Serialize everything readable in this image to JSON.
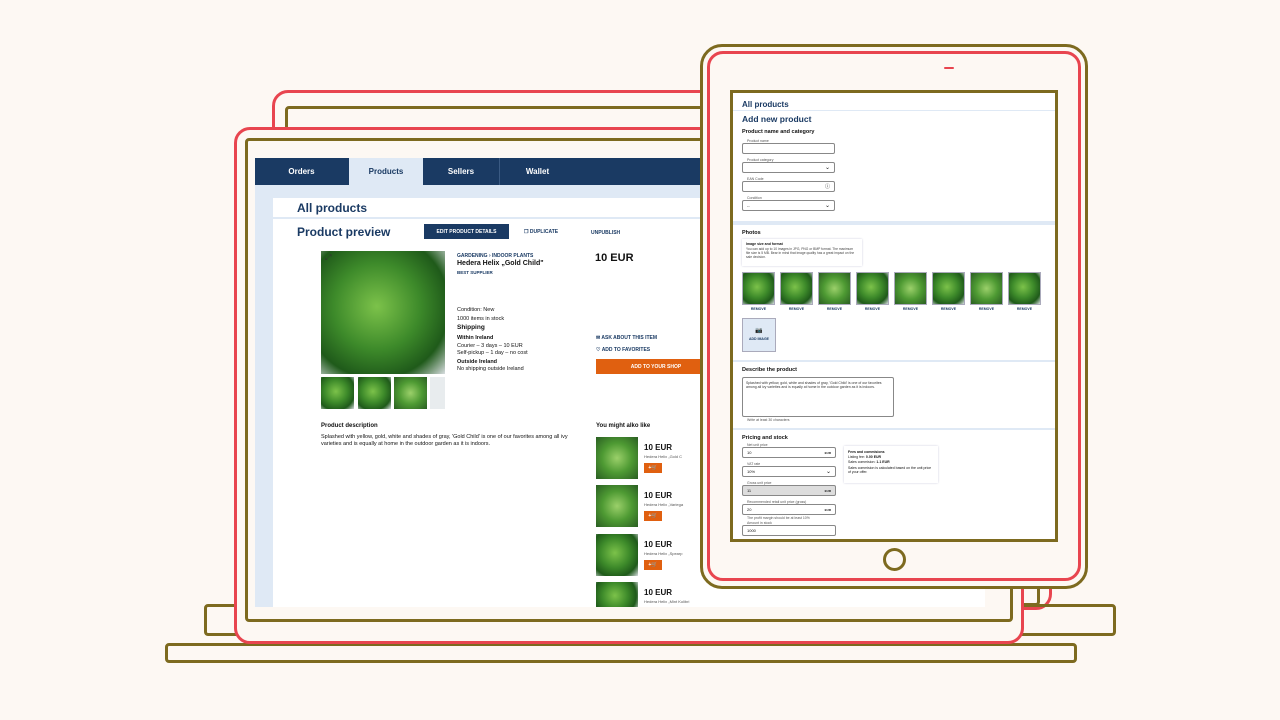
{
  "colors": {
    "background": "#fdf8f3",
    "outline_red": "#e8454f",
    "outline_gold": "#7d6a1f",
    "navy": "#1a3a63",
    "accent_orange": "#e06010",
    "light_blue": "#dfe9f5"
  },
  "laptop": {
    "tabs": [
      {
        "label": "Orders",
        "active": false
      },
      {
        "label": "Products",
        "active": true
      },
      {
        "label": "Sellers",
        "active": false
      },
      {
        "label": "Wallet",
        "active": false
      }
    ],
    "section_title": "All products",
    "page_title": "Product preview",
    "actions": {
      "edit": "EDIT PRODUCT DETAILS",
      "duplicate": "DUPLICATE",
      "unpublish": "UNPUBLISH"
    },
    "product": {
      "category": "GARDENING › INDOOR PLANTS",
      "name": "Hedera Helix „Gold Child\"",
      "badge": "BEST SUPPLIER",
      "price": "10 EUR",
      "condition": "Condition: New",
      "stock": "1000 items in stock",
      "shipping_title": "Shipping",
      "within_title": "Within Ireland",
      "within_1": "Courier – 3 days – 10 EUR",
      "within_2": "Self-pickup – 1 day – no cost",
      "outside_title": "Outside Ireland",
      "outside_1": "No shipping outside Ireland",
      "ask": "ASK ABOUT THIS ITEM",
      "favorites": "ADD TO FAVORITES",
      "add_to_shop": "ADD TO YOUR SHOP",
      "description_title": "Product description",
      "description": "Splashed with yellow, gold, white and shades of gray, 'Gold Child' is one of our favorites among all ivy varieties and is equally at home in the outdoor garden as it is indoors."
    },
    "related_title": "You might alko like",
    "related": [
      {
        "price": "10 EUR",
        "name": "Hedera Helix „Gold C"
      },
      {
        "price": "10 EUR",
        "name": "Hedera Helix „Variega"
      },
      {
        "price": "10 EUR",
        "name": "Hedera Helix „Spearp"
      },
      {
        "price": "10 EUR",
        "name": "Hedera Helix „Mint Kolibri"
      }
    ]
  },
  "tablet": {
    "section_title": "All products",
    "page_title": "Add new product",
    "name_section": "Product name and category",
    "fields": {
      "product_name": "Product name",
      "product_category": "Product category",
      "ean": "EAN Code",
      "condition": "Condition",
      "condition_value": "--"
    },
    "photos_title": "Photos",
    "photos_info_title": "Image size and format",
    "photos_info": "You can add up to 10 images in JPG, PNG or BMP format. The maximum file size is 5 MB. Bear in mind that image quality has a great impact on the sale decision.",
    "remove": "REMOVE",
    "add_image": "ADD IMAGE",
    "describe_title": "Describe the product",
    "describe_text": "Splashed with yellow, gold, white and shades of gray, 'Gold Child' is one of our favorites among all ivy varieties and is equally at home in the outdoor garden as it is indoors.",
    "describe_hint": "Write at least 30 characters",
    "pricing_title": "Pricing and stock",
    "pricing": {
      "net_label": "Net unit price",
      "net_value": "10",
      "currency": "EUR",
      "vat_label": "VAT rate",
      "vat_value": "10%",
      "gross_label": "Gross unit price",
      "gross_value": "11",
      "rrp_label": "Recommended retail unit price (gross)",
      "rrp_value": "20",
      "rrp_hint": "The profit margin should be at least 10%",
      "amount_label": "Amount in stock",
      "amount_value": "1000"
    },
    "fees": {
      "title": "Fees and commisions",
      "listing": "Listing fee: ",
      "listing_value": "0.00 EUR",
      "sales": "Sales commision: ",
      "sales_value": "1.1 EUR",
      "note": "Sales commision is calculated based on the unit price of your offer."
    }
  }
}
